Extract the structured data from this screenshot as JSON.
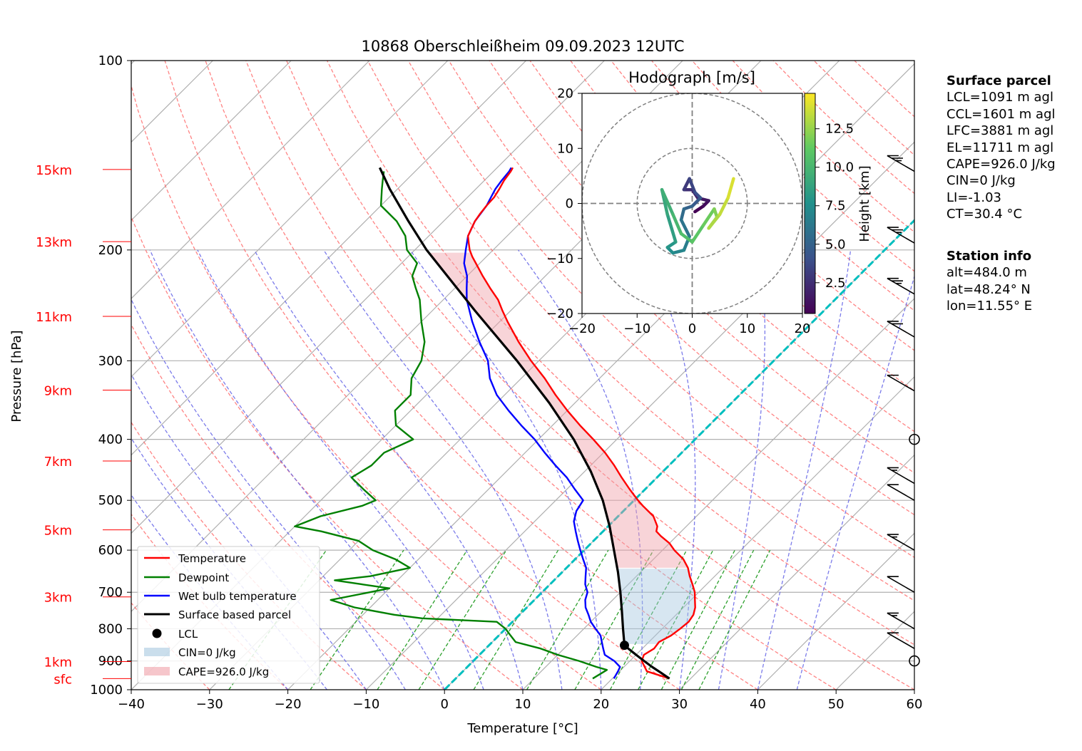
{
  "chart_data": {
    "type": "line",
    "title": "10868 Oberschleißheim 09.09.2023 12UTC",
    "xlabel": "Temperature [°C]",
    "ylabel": "Pressure [hPa]",
    "xlim": [
      -40,
      60
    ],
    "ylim": [
      1000,
      100
    ],
    "y_scale": "log",
    "skew": "45°",
    "grid": true,
    "x_ticks": [
      "−40",
      "−30",
      "−20",
      "−10",
      "0",
      "10",
      "20",
      "30",
      "40",
      "50",
      "60"
    ],
    "y_ticks": [
      "1000",
      "900",
      "800",
      "700",
      "600",
      "500",
      "400",
      "300",
      "200",
      "100"
    ],
    "height_labels": [
      {
        "label": "sfc",
        "p": 960
      },
      {
        "label": "1km",
        "p": 902
      },
      {
        "label": "3km",
        "p": 712
      },
      {
        "label": "5km",
        "p": 557
      },
      {
        "label": "7km",
        "p": 433
      },
      {
        "label": "9km",
        "p": 334
      },
      {
        "label": "11km",
        "p": 255
      },
      {
        "label": "13km",
        "p": 194
      },
      {
        "label": "15km",
        "p": 149
      }
    ],
    "legend_position": "lower-left",
    "legend": [
      "Temperature",
      "Dewpoint",
      "Wet bulb temperature",
      "Surface based parcel",
      "LCL",
      "CIN=0 J/kg",
      "CAPE=926.0 J/kg"
    ],
    "colors": {
      "temperature": "#ff0000",
      "dewpoint": "#008000",
      "wetbulb": "#0000ff",
      "parcel": "#000000",
      "freezing_line": "#00bfbf",
      "dry_adiabats": "#ff6464",
      "moist_adiabats": "#6464e6",
      "mixing_ratio": "#2ca02c",
      "isotherms": "#aaaaaa",
      "cin_fill": "#a6c8e0",
      "cape_fill": "#f0a0a8"
    },
    "series": [
      {
        "name": "Temperature",
        "p": [
          960,
          935,
          900,
          880,
          860,
          840,
          820,
          800,
          780,
          760,
          740,
          720,
          700,
          680,
          660,
          640,
          620,
          600,
          585,
          570,
          560,
          550,
          530,
          510,
          500,
          480,
          460,
          440,
          420,
          400,
          380,
          360,
          340,
          320,
          300,
          280,
          260,
          250,
          240,
          230,
          220,
          210,
          205,
          200,
          195,
          190,
          185,
          180,
          175,
          170,
          165,
          160,
          155,
          150,
          148
        ],
        "t": [
          27.3,
          23.5,
          21.5,
          21.0,
          21.5,
          21.3,
          22.0,
          22.3,
          22.5,
          22.2,
          21.5,
          20.5,
          19.5,
          18.2,
          16.8,
          15.5,
          13.8,
          11.5,
          10.0,
          8.0,
          6.8,
          6.3,
          4.5,
          1.8,
          0.5,
          -2.0,
          -4.5,
          -7.0,
          -9.8,
          -13.0,
          -16.5,
          -20.0,
          -23.5,
          -27.0,
          -31.0,
          -35.0,
          -39.0,
          -41.0,
          -43.0,
          -45.5,
          -48.0,
          -50.5,
          -51.8,
          -53.0,
          -54.0,
          -55.0,
          -55.5,
          -56.0,
          -56.3,
          -56.5,
          -56.6,
          -57.0,
          -57.5,
          -57.8,
          -58.0
        ]
      },
      {
        "name": "Dewpoint",
        "p": [
          960,
          930,
          920,
          900,
          880,
          860,
          840,
          820,
          800,
          780,
          770,
          760,
          740,
          720,
          700,
          690,
          680,
          670,
          660,
          640,
          620,
          600,
          580,
          560,
          550,
          530,
          510,
          500,
          480,
          460,
          440,
          420,
          400,
          380,
          360,
          340,
          320,
          300,
          280,
          260,
          240,
          230,
          220,
          210,
          200,
          190,
          180,
          170,
          160,
          155,
          150
        ],
        "t": [
          17.5,
          18.2,
          16.5,
          13.5,
          10.0,
          7.0,
          3.0,
          1.5,
          0.0,
          -2.0,
          -12.0,
          -16.0,
          -22.0,
          -26.0,
          -22.0,
          -20.0,
          -24.0,
          -28.0,
          -24.0,
          -20.0,
          -23.0,
          -27.0,
          -30.0,
          -36.0,
          -40.0,
          -38.0,
          -34.0,
          -33.0,
          -36.0,
          -39.0,
          -38.0,
          -38.0,
          -36.0,
          -40.0,
          -42.0,
          -42.0,
          -44.0,
          -45.0,
          -47.0,
          -50.0,
          -53.0,
          -55.0,
          -57.0,
          -58.0,
          -61.0,
          -63.0,
          -66.0,
          -70.0,
          -72.0,
          -73.0,
          -74.0
        ]
      },
      {
        "name": "Wet bulb temperature",
        "p": [
          960,
          935,
          920,
          900,
          880,
          860,
          840,
          820,
          800,
          780,
          760,
          740,
          720,
          700,
          680,
          660,
          640,
          620,
          600,
          580,
          560,
          540,
          520,
          500,
          480,
          460,
          440,
          420,
          400,
          380,
          360,
          340,
          320,
          300,
          280,
          260,
          240,
          230,
          220,
          210,
          200,
          190,
          180,
          170,
          165,
          160,
          155,
          150,
          148
        ],
        "t": [
          20.2,
          19.8,
          19.5,
          18.0,
          16.0,
          15.0,
          14.0,
          13.0,
          11.5,
          10.0,
          8.8,
          7.5,
          6.5,
          5.8,
          4.5,
          3.5,
          2.5,
          1.0,
          -0.5,
          -2.0,
          -3.5,
          -5.0,
          -6.0,
          -6.5,
          -9.0,
          -11.5,
          -14.5,
          -17.5,
          -20.5,
          -24.0,
          -27.5,
          -31.0,
          -34.0,
          -36.5,
          -40.0,
          -43.5,
          -47.0,
          -48.5,
          -50.0,
          -52.0,
          -53.5,
          -55.0,
          -56.0,
          -56.5,
          -57.0,
          -57.5,
          -57.8,
          -58.0,
          -58.2
        ]
      },
      {
        "name": "Surface based parcel",
        "p": [
          960,
          940,
          920,
          900,
          880,
          860,
          850,
          800,
          750,
          700,
          650,
          600,
          550,
          500,
          450,
          400,
          350,
          300,
          250,
          200,
          180,
          160,
          148
        ],
        "t": [
          27.3,
          25.5,
          23.6,
          21.8,
          20.0,
          18.2,
          17.3,
          15.0,
          12.6,
          10.0,
          7.1,
          3.8,
          0.2,
          -4.0,
          -9.2,
          -15.5,
          -23.3,
          -32.8,
          -44.5,
          -58.5,
          -64.5,
          -71.0,
          -75.0
        ]
      }
    ],
    "lcl": {
      "p": 850,
      "t": 17.3
    },
    "cin": "CIN=0 J/kg",
    "cape": "CAPE=926.0 J/kg",
    "winds": [
      {
        "p": 150,
        "speed_kt": 25,
        "label": "barb"
      },
      {
        "p": 195,
        "speed_kt": 25,
        "label": "barb"
      },
      {
        "p": 235,
        "speed_kt": 25,
        "label": "barb"
      },
      {
        "p": 275,
        "speed_kt": 20,
        "label": "barb"
      },
      {
        "p": 335,
        "speed_kt": 10,
        "label": "barb"
      },
      {
        "p": 400,
        "speed_kt": 0,
        "label": "calm"
      },
      {
        "p": 470,
        "speed_kt": 15,
        "label": "barb"
      },
      {
        "p": 500,
        "speed_kt": 10,
        "label": "barb"
      },
      {
        "p": 600,
        "speed_kt": 15,
        "label": "barb"
      },
      {
        "p": 700,
        "speed_kt": 10,
        "label": "barb"
      },
      {
        "p": 800,
        "speed_kt": 15,
        "label": "barb"
      },
      {
        "p": 860,
        "speed_kt": 10,
        "label": "barb"
      },
      {
        "p": 900,
        "speed_kt": 0,
        "label": "calm"
      }
    ]
  },
  "hodograph": {
    "title": "Hodograph [m/s]",
    "xlim": [
      -20,
      20
    ],
    "ylim": [
      -20,
      20
    ],
    "x_ticks": [
      "−20",
      "−10",
      "0",
      "10",
      "20"
    ],
    "y_ticks": [
      "20",
      "10",
      "0",
      "−10",
      "−20"
    ],
    "rings": [
      10,
      20
    ],
    "colorbar_label": "Height [km]",
    "colorbar_ticks": [
      "2.5",
      "5.0",
      "7.5",
      "10.0",
      "12.5"
    ],
    "colorbar_range": [
      0.5,
      14.8
    ],
    "path": [
      {
        "u": 0.5,
        "v": -1.5,
        "h": 0.5
      },
      {
        "u": 2.0,
        "v": -0.5,
        "h": 1.0
      },
      {
        "u": 3.0,
        "v": 0.5,
        "h": 1.5
      },
      {
        "u": 1.0,
        "v": 1.0,
        "h": 2.0
      },
      {
        "u": 0.0,
        "v": 2.5,
        "h": 2.5
      },
      {
        "u": -1.5,
        "v": 2.5,
        "h": 3.0
      },
      {
        "u": -0.5,
        "v": 4.5,
        "h": 3.5
      },
      {
        "u": 0.5,
        "v": 2.0,
        "h": 4.0
      },
      {
        "u": 1.5,
        "v": 1.0,
        "h": 4.5
      },
      {
        "u": 0.0,
        "v": -0.5,
        "h": 5.0
      },
      {
        "u": -1.5,
        "v": -1.0,
        "h": 5.5
      },
      {
        "u": -2.0,
        "v": -3.0,
        "h": 6.0
      },
      {
        "u": -0.5,
        "v": -6.0,
        "h": 6.5
      },
      {
        "u": -1.5,
        "v": -8.5,
        "h": 7.0
      },
      {
        "u": -3.5,
        "v": -9.0,
        "h": 7.5
      },
      {
        "u": -4.5,
        "v": -8.0,
        "h": 8.0
      },
      {
        "u": -3.0,
        "v": -7.0,
        "h": 8.5
      },
      {
        "u": -4.5,
        "v": -2.0,
        "h": 9.0
      },
      {
        "u": -5.5,
        "v": 2.5,
        "h": 9.5
      },
      {
        "u": -3.5,
        "v": -2.0,
        "h": 10.0
      },
      {
        "u": -2.0,
        "v": -5.5,
        "h": 10.5
      },
      {
        "u": 0.0,
        "v": -7.0,
        "h": 11.0
      },
      {
        "u": 2.0,
        "v": -4.0,
        "h": 11.5
      },
      {
        "u": 4.0,
        "v": -1.0,
        "h": 12.0
      },
      {
        "u": 4.5,
        "v": -2.5,
        "h": 12.5
      },
      {
        "u": 3.0,
        "v": -4.5,
        "h": 13.0
      },
      {
        "u": 5.0,
        "v": -2.0,
        "h": 13.5
      },
      {
        "u": 6.5,
        "v": 1.0,
        "h": 14.0
      },
      {
        "u": 7.5,
        "v": 4.5,
        "h": 14.5
      }
    ]
  },
  "surface_parcel": {
    "heading": "Surface parcel",
    "lines": [
      "LCL=1091 m agl",
      "CCL=1601 m agl",
      "LFC=3881 m agl",
      "EL=11711 m agl",
      "CAPE=926.0 J/kg",
      "CIN=0 J/kg",
      "LI=-1.03",
      "CT=30.4 °C"
    ]
  },
  "station_info": {
    "heading": "Station info",
    "lines": [
      "alt=484.0 m",
      "lat=48.24° N",
      "lon=11.55° E"
    ]
  }
}
